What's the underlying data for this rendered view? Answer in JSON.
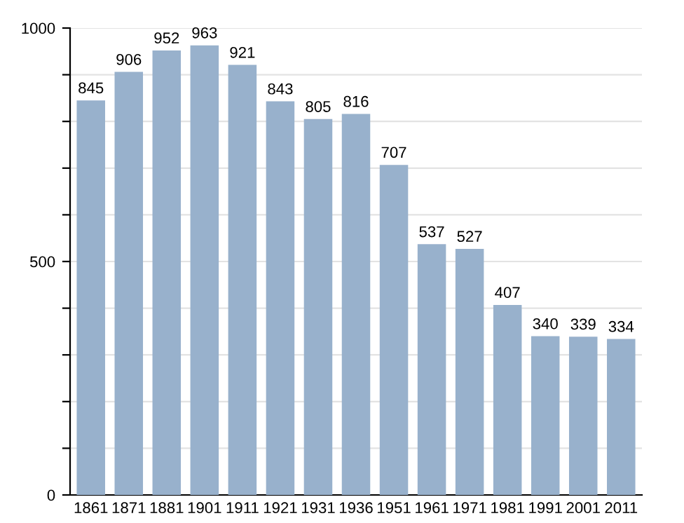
{
  "chart_data": {
    "type": "bar",
    "categories": [
      "1861",
      "1871",
      "1881",
      "1901",
      "1911",
      "1921",
      "1931",
      "1936",
      "1951",
      "1961",
      "1971",
      "1981",
      "1991",
      "2001",
      "2011"
    ],
    "values": [
      845,
      906,
      952,
      963,
      921,
      843,
      805,
      816,
      707,
      537,
      527,
      407,
      340,
      339,
      334
    ],
    "color": "#98b1cc",
    "ylim": [
      0,
      1000
    ],
    "yticks": [
      0,
      {
        "value": 100,
        "label": null
      },
      {
        "value": 200,
        "label": null
      },
      {
        "value": 300,
        "label": null
      },
      {
        "value": 400,
        "label": null
      },
      500,
      {
        "value": 600,
        "label": null
      },
      {
        "value": 700,
        "label": null
      },
      {
        "value": 800,
        "label": null
      },
      {
        "value": 900,
        "label": null
      },
      1000
    ],
    "grid": "y",
    "data_labels": true
  }
}
